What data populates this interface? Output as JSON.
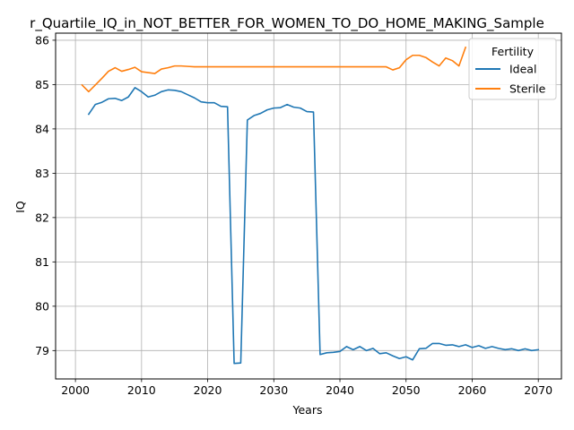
{
  "chart_data": {
    "type": "line",
    "title": "r_Quartile_IQ_in_NOT_BETTER_FOR_WOMEN_TO_DO_HOME_MAKING_Sample",
    "xlabel": "Years",
    "ylabel": "IQ",
    "xlim": [
      1997,
      2073.5
    ],
    "ylim": [
      78.36,
      86.16
    ],
    "xticks": [
      2000,
      2010,
      2020,
      2030,
      2040,
      2050,
      2060,
      2070
    ],
    "yticks": [
      79,
      80,
      81,
      82,
      83,
      84,
      85,
      86
    ],
    "grid": true,
    "legend": {
      "title": "Fertility",
      "position": "top-right"
    },
    "series": [
      {
        "name": "Ideal",
        "color": "#1f77b4",
        "x": [
          2002,
          2003,
          2004,
          2005,
          2006,
          2007,
          2008,
          2009,
          2010,
          2011,
          2012,
          2013,
          2014,
          2015,
          2016,
          2017,
          2018,
          2019,
          2020,
          2021,
          2022,
          2023,
          2024,
          2025,
          2026,
          2027,
          2028,
          2029,
          2030,
          2031,
          2032,
          2033,
          2034,
          2035,
          2036,
          2037,
          2038,
          2039,
          2040,
          2041,
          2042,
          2043,
          2044,
          2045,
          2046,
          2047,
          2048,
          2049,
          2050,
          2051,
          2052,
          2053,
          2054,
          2055,
          2056,
          2057,
          2058,
          2059,
          2060,
          2061,
          2062,
          2063,
          2064,
          2065,
          2066,
          2067,
          2068,
          2069,
          2070
        ],
        "values": [
          84.33,
          84.55,
          84.6,
          84.68,
          84.69,
          84.64,
          84.72,
          84.93,
          84.84,
          84.72,
          84.76,
          84.84,
          84.88,
          84.87,
          84.84,
          84.77,
          84.7,
          84.61,
          84.59,
          84.59,
          84.51,
          84.5,
          78.71,
          78.72,
          84.2,
          84.3,
          84.35,
          84.43,
          84.47,
          84.48,
          84.55,
          84.49,
          84.47,
          84.39,
          84.38,
          78.91,
          78.95,
          78.96,
          78.98,
          79.09,
          79.02,
          79.09,
          79.0,
          79.05,
          78.93,
          78.95,
          78.88,
          78.82,
          78.86,
          78.79,
          79.04,
          79.05,
          79.16,
          79.16,
          79.12,
          79.13,
          79.09,
          79.13,
          79.07,
          79.11,
          79.05,
          79.09,
          79.05,
          79.02,
          79.04,
          79.0,
          79.04,
          79.0,
          79.02
        ]
      },
      {
        "name": "Sterile",
        "color": "#ff7f0e",
        "x": [
          2001,
          2002,
          2003,
          2004,
          2005,
          2006,
          2007,
          2008,
          2009,
          2010,
          2011,
          2012,
          2013,
          2014,
          2015,
          2016,
          2017,
          2018,
          2019,
          2020,
          2021,
          2022,
          2023,
          2024,
          2025,
          2026,
          2027,
          2028,
          2029,
          2030,
          2031,
          2032,
          2033,
          2034,
          2035,
          2036,
          2037,
          2038,
          2039,
          2040,
          2041,
          2042,
          2043,
          2044,
          2045,
          2046,
          2047,
          2048,
          2049,
          2050,
          2051,
          2052,
          2053,
          2054,
          2055,
          2056,
          2057,
          2058,
          2059
        ],
        "values": [
          84.99,
          84.84,
          84.99,
          85.14,
          85.3,
          85.38,
          85.3,
          85.34,
          85.39,
          85.29,
          85.27,
          85.25,
          85.35,
          85.38,
          85.42,
          85.42,
          85.41,
          85.4,
          85.4,
          85.4,
          85.4,
          85.4,
          85.4,
          85.4,
          85.4,
          85.4,
          85.4,
          85.4,
          85.4,
          85.4,
          85.4,
          85.4,
          85.4,
          85.4,
          85.4,
          85.4,
          85.4,
          85.4,
          85.4,
          85.4,
          85.4,
          85.4,
          85.4,
          85.4,
          85.4,
          85.4,
          85.4,
          85.33,
          85.38,
          85.56,
          85.66,
          85.66,
          85.61,
          85.51,
          85.42,
          85.6,
          85.54,
          85.42,
          85.84
        ]
      }
    ]
  }
}
